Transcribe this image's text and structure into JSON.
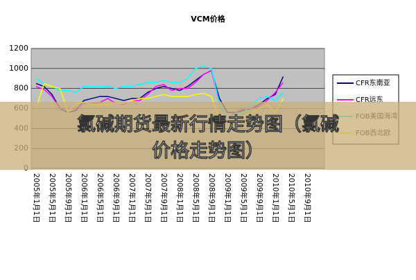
{
  "chart_data": {
    "type": "line",
    "title": "VCM价格",
    "categories": [
      "2005年1月1日",
      null,
      "2005年5月1日",
      null,
      "2005年9月1日",
      null,
      "2006年1月1日",
      null,
      "2006年5月1日",
      null,
      "2006年9月1日",
      null,
      "2007年1月1日",
      null,
      "2007年5月1日",
      null,
      "2007年9月1日",
      null,
      "2008年1月1日",
      null,
      "2008年5月1日",
      null,
      "2008年9月1日",
      null,
      "2009年1月1日",
      null,
      "2009年5月1日",
      null,
      "2009年9月1日",
      null,
      "2010年1月1日",
      null,
      "2010年5月1日",
      null,
      "2010年9月1日"
    ],
    "series": [
      {
        "name": "CFR东南亚",
        "color": "#000080",
        "values": [
          850,
          820,
          740,
          600,
          560,
          580,
          680,
          700,
          720,
          720,
          700,
          680,
          700,
          700,
          760,
          800,
          820,
          800,
          780,
          820,
          880,
          940,
          980,
          700,
          560,
          560,
          580,
          600,
          640,
          700,
          740,
          920,
          null,
          null,
          null
        ]
      },
      {
        "name": "CFR远东",
        "color": "#ff00ff",
        "values": [
          820,
          790,
          720,
          600,
          600,
          600,
          650,
          650,
          660,
          700,
          650,
          640,
          680,
          680,
          740,
          820,
          840,
          780,
          800,
          800,
          860,
          940,
          980,
          650,
          500,
          560,
          600,
          600,
          620,
          680,
          760,
          860,
          null,
          null,
          null
        ]
      },
      {
        "name": "FOB美国海湾",
        "color": "#00ffff",
        "values": [
          900,
          850,
          820,
          780,
          780,
          760,
          820,
          820,
          820,
          820,
          800,
          820,
          820,
          840,
          860,
          860,
          880,
          860,
          860,
          900,
          1000,
          1020,
          1000,
          650,
          500,
          540,
          560,
          640,
          700,
          720,
          680,
          760,
          null,
          null,
          null
        ]
      },
      {
        "name": "FOB西北欧",
        "color": "#ffff00",
        "values": [
          600,
          850,
          820,
          800,
          560,
          650,
          660,
          640,
          640,
          640,
          650,
          650,
          680,
          700,
          700,
          720,
          740,
          720,
          720,
          720,
          740,
          750,
          720,
          500,
          460,
          500,
          520,
          560,
          600,
          640,
          560,
          700,
          null,
          null,
          null
        ]
      }
    ],
    "ylim": [
      0,
      1200
    ],
    "yticks": [
      0,
      200,
      400,
      600,
      800,
      1000,
      1200
    ],
    "grid": true
  },
  "banner": {
    "lines": [
      "氯碱期货最新行情走势图（氯碱",
      "价格走势图）"
    ]
  }
}
